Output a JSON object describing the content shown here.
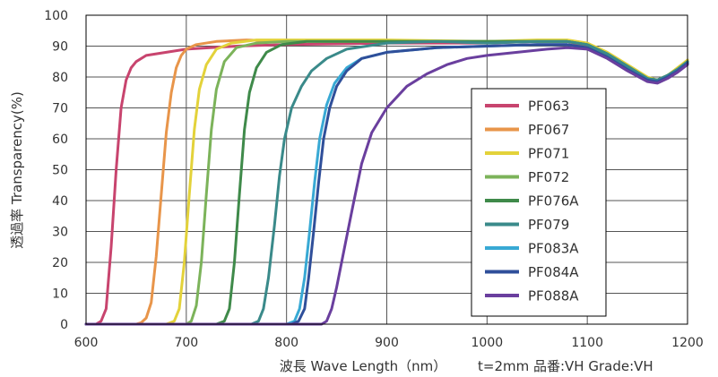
{
  "chart_data": {
    "type": "line",
    "title": "",
    "xlabel": "波長 Wave Length（nm）",
    "ylabel": "透過率 Transparency(%)",
    "note": "t=2mm 品番:VH Grade:VH",
    "xlim": [
      600,
      1200
    ],
    "ylim": [
      0,
      100
    ],
    "xticks": [
      600,
      700,
      800,
      900,
      1000,
      1100,
      1200
    ],
    "yticks": [
      0,
      10,
      20,
      30,
      40,
      50,
      60,
      70,
      80,
      90,
      100
    ],
    "grid": true,
    "legend_position": "right",
    "series": [
      {
        "name": "PF063",
        "color": "#c8446e",
        "points": [
          [
            600,
            0
          ],
          [
            610,
            0
          ],
          [
            615,
            1
          ],
          [
            620,
            5
          ],
          [
            625,
            25
          ],
          [
            630,
            50
          ],
          [
            635,
            70
          ],
          [
            640,
            79
          ],
          [
            645,
            83
          ],
          [
            650,
            85
          ],
          [
            660,
            87
          ],
          [
            680,
            88
          ],
          [
            700,
            89
          ],
          [
            750,
            90
          ],
          [
            800,
            90.5
          ],
          [
            900,
            91
          ],
          [
            1000,
            91
          ],
          [
            1050,
            91.5
          ],
          [
            1080,
            91.5
          ],
          [
            1100,
            90
          ],
          [
            1120,
            87
          ],
          [
            1140,
            83
          ],
          [
            1160,
            79
          ],
          [
            1170,
            78.5
          ],
          [
            1180,
            80
          ],
          [
            1190,
            82
          ],
          [
            1200,
            84.5
          ]
        ]
      },
      {
        "name": "PF067",
        "color": "#e8954a",
        "points": [
          [
            600,
            0
          ],
          [
            650,
            0
          ],
          [
            655,
            0.5
          ],
          [
            660,
            2
          ],
          [
            665,
            7
          ],
          [
            670,
            22
          ],
          [
            675,
            42
          ],
          [
            680,
            62
          ],
          [
            685,
            75
          ],
          [
            690,
            83
          ],
          [
            695,
            87
          ],
          [
            700,
            89
          ],
          [
            710,
            90.5
          ],
          [
            730,
            91.5
          ],
          [
            760,
            92
          ],
          [
            800,
            91.5
          ],
          [
            900,
            91.5
          ],
          [
            1000,
            91.5
          ],
          [
            1050,
            91.5
          ],
          [
            1080,
            91.5
          ],
          [
            1100,
            90.5
          ],
          [
            1120,
            87.5
          ],
          [
            1140,
            83.5
          ],
          [
            1160,
            79.5
          ],
          [
            1170,
            79
          ],
          [
            1180,
            80.5
          ],
          [
            1190,
            82.5
          ],
          [
            1200,
            85
          ]
        ]
      },
      {
        "name": "PF071",
        "color": "#e3d23a",
        "points": [
          [
            600,
            0
          ],
          [
            680,
            0
          ],
          [
            688,
            1
          ],
          [
            693,
            5
          ],
          [
            698,
            20
          ],
          [
            703,
            42
          ],
          [
            708,
            63
          ],
          [
            713,
            76
          ],
          [
            720,
            84
          ],
          [
            730,
            89
          ],
          [
            745,
            91
          ],
          [
            770,
            92
          ],
          [
            800,
            92
          ],
          [
            900,
            92
          ],
          [
            1000,
            91.5
          ],
          [
            1050,
            92
          ],
          [
            1080,
            92
          ],
          [
            1100,
            91
          ],
          [
            1120,
            88
          ],
          [
            1140,
            84
          ],
          [
            1160,
            80
          ],
          [
            1170,
            79
          ],
          [
            1180,
            80.5
          ],
          [
            1190,
            83
          ],
          [
            1200,
            85.5
          ]
        ]
      },
      {
        "name": "PF072",
        "color": "#7cb35a",
        "points": [
          [
            600,
            0
          ],
          [
            700,
            0
          ],
          [
            705,
            1
          ],
          [
            710,
            6
          ],
          [
            715,
            20
          ],
          [
            720,
            42
          ],
          [
            725,
            63
          ],
          [
            730,
            76
          ],
          [
            738,
            85
          ],
          [
            750,
            89.5
          ],
          [
            770,
            91
          ],
          [
            800,
            91.5
          ],
          [
            900,
            91.5
          ],
          [
            1000,
            91.5
          ],
          [
            1050,
            91.5
          ],
          [
            1080,
            91.5
          ],
          [
            1100,
            90.5
          ],
          [
            1120,
            87.5
          ],
          [
            1140,
            83.5
          ],
          [
            1160,
            79.5
          ],
          [
            1170,
            79
          ],
          [
            1180,
            80.5
          ],
          [
            1190,
            82.5
          ],
          [
            1200,
            85
          ]
        ]
      },
      {
        "name": "PF076A",
        "color": "#3f8a4a",
        "points": [
          [
            600,
            0
          ],
          [
            730,
            0
          ],
          [
            738,
            1
          ],
          [
            743,
            5
          ],
          [
            748,
            20
          ],
          [
            753,
            42
          ],
          [
            758,
            63
          ],
          [
            763,
            75
          ],
          [
            770,
            83
          ],
          [
            780,
            88
          ],
          [
            795,
            90.5
          ],
          [
            820,
            91.5
          ],
          [
            900,
            91.5
          ],
          [
            1000,
            91.5
          ],
          [
            1050,
            91.5
          ],
          [
            1080,
            91.5
          ],
          [
            1100,
            90.5
          ],
          [
            1120,
            87.5
          ],
          [
            1140,
            83.5
          ],
          [
            1160,
            79.5
          ],
          [
            1170,
            79
          ],
          [
            1180,
            80.5
          ],
          [
            1190,
            82.5
          ],
          [
            1200,
            85
          ]
        ]
      },
      {
        "name": "PF079",
        "color": "#3a8a8a",
        "points": [
          [
            600,
            0
          ],
          [
            765,
            0
          ],
          [
            772,
            1
          ],
          [
            777,
            5
          ],
          [
            782,
            15
          ],
          [
            788,
            32
          ],
          [
            793,
            48
          ],
          [
            798,
            60
          ],
          [
            805,
            70
          ],
          [
            815,
            77
          ],
          [
            825,
            82
          ],
          [
            840,
            86
          ],
          [
            860,
            89
          ],
          [
            900,
            91
          ],
          [
            950,
            91.5
          ],
          [
            1000,
            91
          ],
          [
            1050,
            91.5
          ],
          [
            1080,
            91.5
          ],
          [
            1100,
            90.5
          ],
          [
            1120,
            87.5
          ],
          [
            1140,
            83.5
          ],
          [
            1160,
            79.5
          ],
          [
            1170,
            79
          ],
          [
            1180,
            80.5
          ],
          [
            1190,
            82.5
          ],
          [
            1200,
            85
          ]
        ]
      },
      {
        "name": "PF083A",
        "color": "#38a9d4",
        "points": [
          [
            600,
            0
          ],
          [
            800,
            0
          ],
          [
            808,
            1
          ],
          [
            813,
            5
          ],
          [
            818,
            15
          ],
          [
            823,
            30
          ],
          [
            828,
            46
          ],
          [
            833,
            60
          ],
          [
            840,
            71
          ],
          [
            848,
            78
          ],
          [
            860,
            83
          ],
          [
            875,
            86
          ],
          [
            900,
            88
          ],
          [
            950,
            89.5
          ],
          [
            1000,
            90
          ],
          [
            1050,
            90.5
          ],
          [
            1080,
            90.5
          ],
          [
            1100,
            89.5
          ],
          [
            1120,
            86.5
          ],
          [
            1140,
            82.5
          ],
          [
            1160,
            79
          ],
          [
            1170,
            78.5
          ],
          [
            1180,
            80
          ],
          [
            1190,
            82
          ],
          [
            1200,
            84.5
          ]
        ]
      },
      {
        "name": "PF084A",
        "color": "#2f4f9a",
        "points": [
          [
            600,
            0
          ],
          [
            805,
            0
          ],
          [
            812,
            1
          ],
          [
            818,
            5
          ],
          [
            822,
            15
          ],
          [
            827,
            30
          ],
          [
            832,
            46
          ],
          [
            837,
            60
          ],
          [
            843,
            70
          ],
          [
            850,
            77
          ],
          [
            860,
            82
          ],
          [
            875,
            86
          ],
          [
            900,
            88
          ],
          [
            950,
            89.5
          ],
          [
            1000,
            90
          ],
          [
            1050,
            90.5
          ],
          [
            1080,
            90.5
          ],
          [
            1100,
            89.5
          ],
          [
            1120,
            86.5
          ],
          [
            1140,
            82.5
          ],
          [
            1160,
            79
          ],
          [
            1170,
            78.5
          ],
          [
            1180,
            80
          ],
          [
            1190,
            82
          ],
          [
            1200,
            84.5
          ]
        ]
      },
      {
        "name": "PF088A",
        "color": "#6a3f9e",
        "points": [
          [
            600,
            0
          ],
          [
            835,
            0
          ],
          [
            840,
            1
          ],
          [
            845,
            5
          ],
          [
            850,
            12
          ],
          [
            858,
            25
          ],
          [
            866,
            38
          ],
          [
            875,
            52
          ],
          [
            885,
            62
          ],
          [
            900,
            70
          ],
          [
            920,
            77
          ],
          [
            940,
            81
          ],
          [
            960,
            84
          ],
          [
            980,
            86
          ],
          [
            1000,
            87
          ],
          [
            1030,
            88
          ],
          [
            1060,
            89
          ],
          [
            1080,
            89.5
          ],
          [
            1100,
            89
          ],
          [
            1120,
            86
          ],
          [
            1140,
            82
          ],
          [
            1160,
            78.5
          ],
          [
            1170,
            78
          ],
          [
            1180,
            79.5
          ],
          [
            1190,
            81.5
          ],
          [
            1200,
            84
          ]
        ]
      }
    ]
  }
}
